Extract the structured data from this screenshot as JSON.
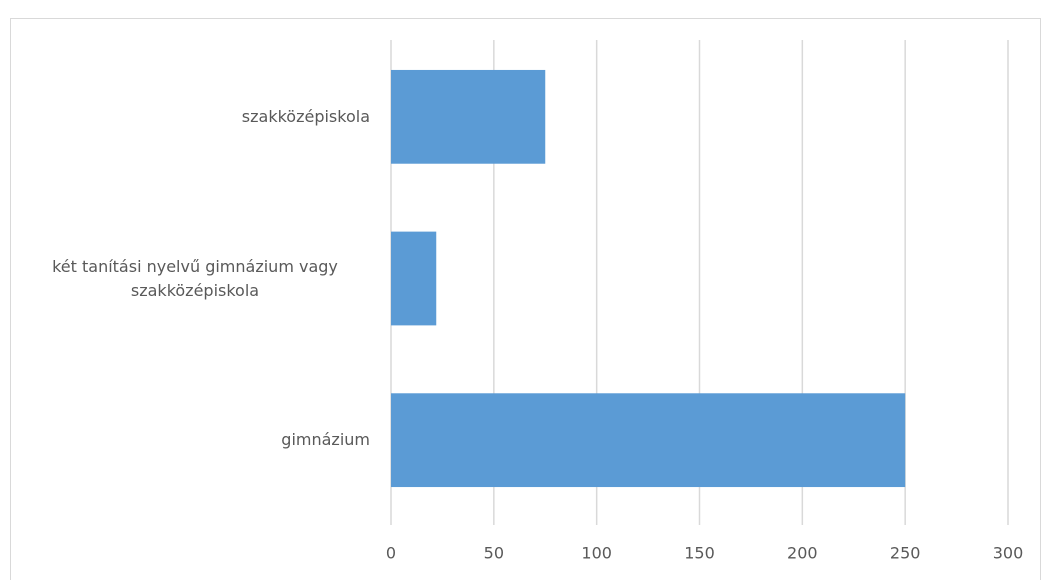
{
  "chart_data": {
    "type": "barh",
    "categories": [
      "szakközépiskola",
      "két tanítási nyelvű gimnázium vagy szakközépiskola",
      "gimnázium"
    ],
    "values": [
      75,
      22,
      250
    ],
    "color": "#5b9bd5",
    "xlim": [
      0,
      300
    ],
    "xticks": [
      0,
      50,
      100,
      150,
      200,
      250,
      300
    ],
    "grid": true
  }
}
